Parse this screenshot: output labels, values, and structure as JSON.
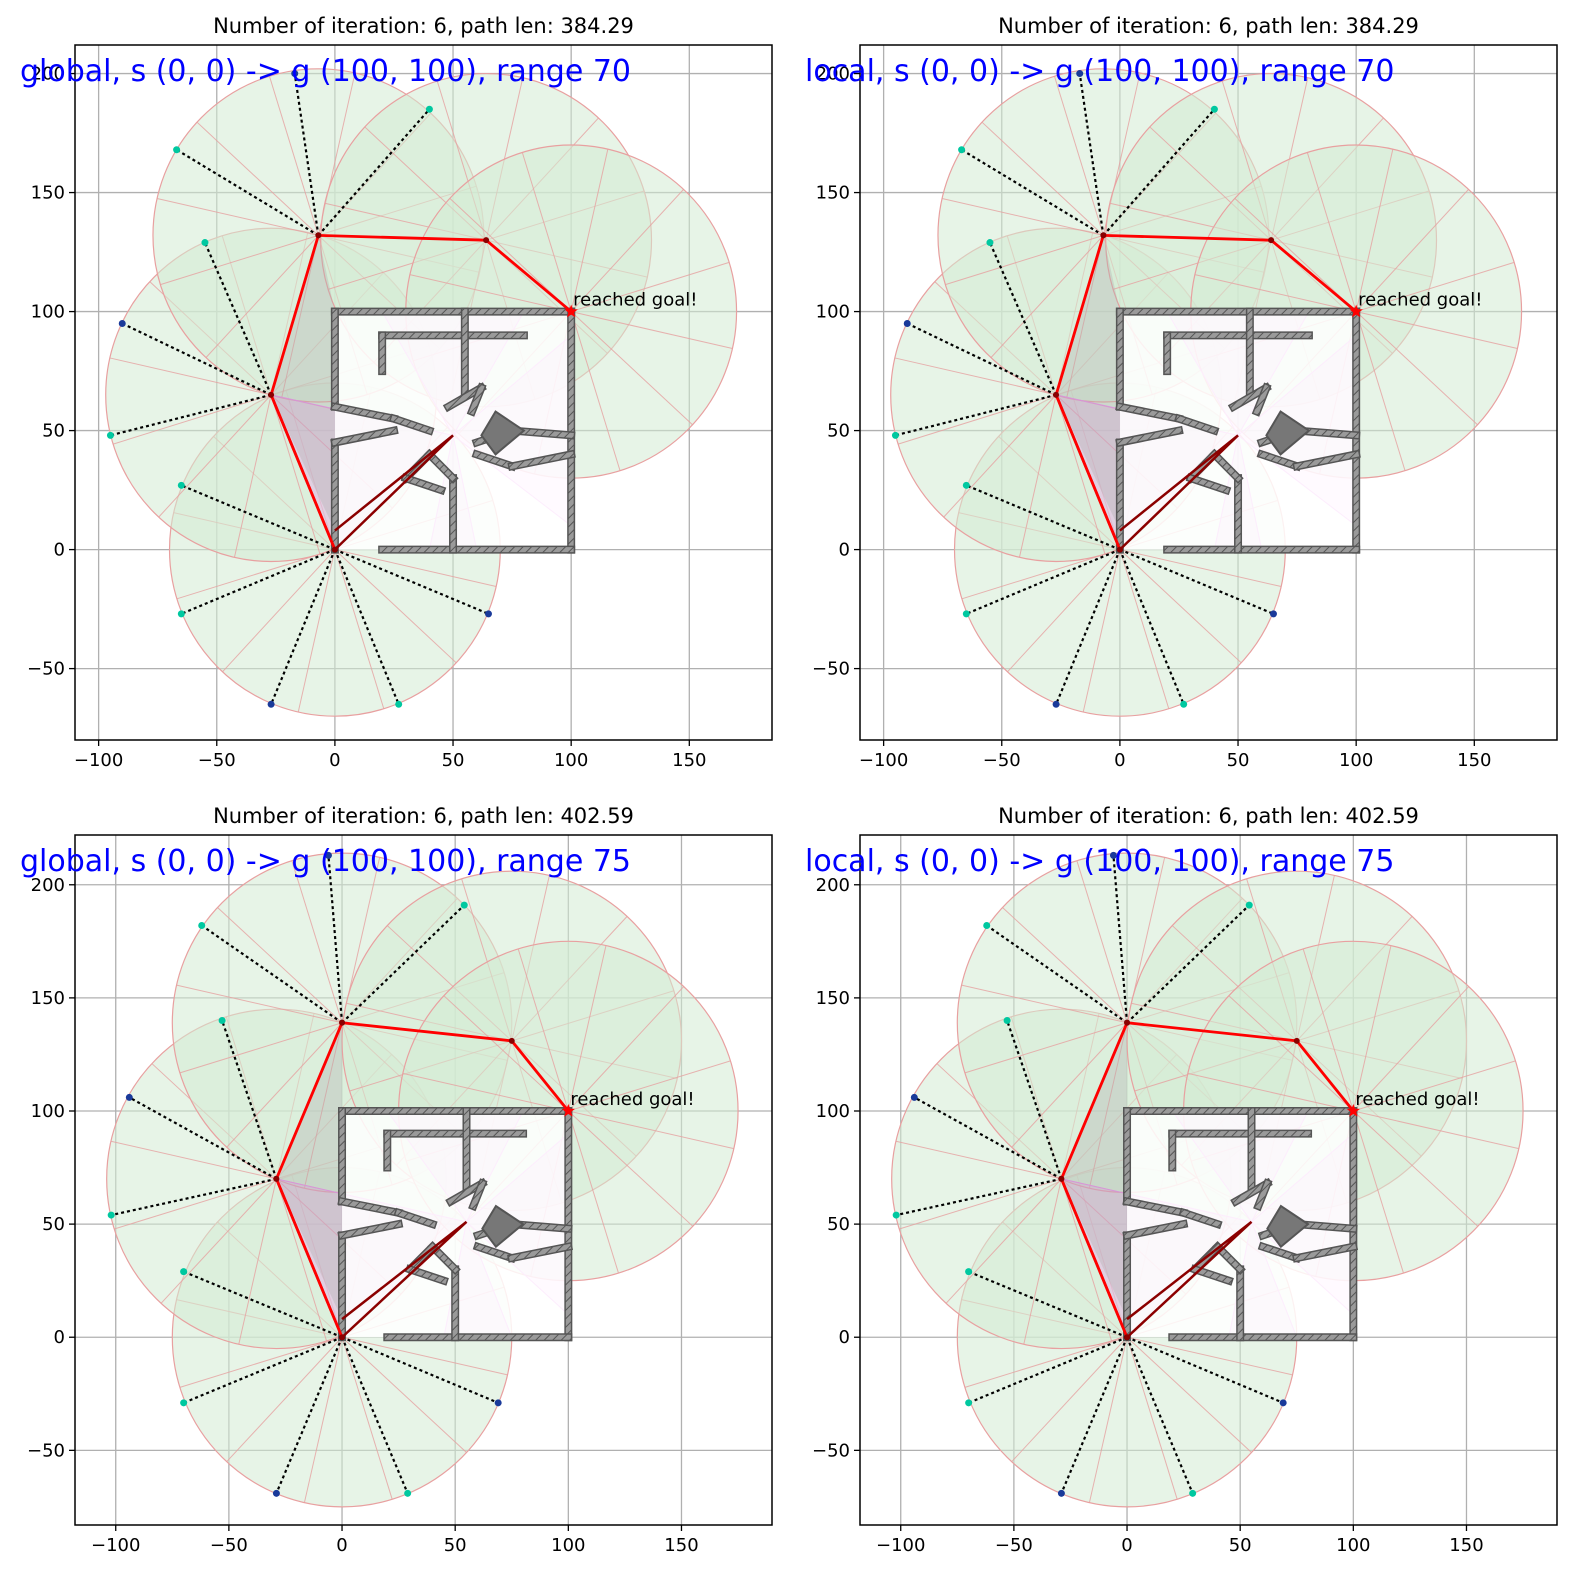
{
  "chart_data": [
    {
      "type": "scatter",
      "title": "Number of iteration: 6, path len: 384.29",
      "overlay_text": "global, s (0, 0) -> g (100, 100), range 70",
      "annotation": "reached goal!",
      "range": 70,
      "xlim": [
        -110,
        185
      ],
      "ylim": [
        -80,
        212
      ],
      "xticks": [
        -100,
        -50,
        0,
        50,
        100,
        150
      ],
      "yticks": [
        -50,
        0,
        50,
        100,
        150,
        200
      ],
      "xtick_labels": [
        "−100",
        "−50",
        "0",
        "50",
        "100",
        "150"
      ],
      "ytick_labels": [
        "−50",
        "0",
        "50",
        "100",
        "150",
        "200"
      ],
      "grid": true,
      "path": [
        [
          0,
          0
        ],
        [
          -27,
          65
        ],
        [
          -7,
          132
        ],
        [
          64,
          130
        ],
        [
          100,
          100
        ]
      ],
      "obstacle_box": [
        [
          0,
          0
        ],
        [
          100,
          100
        ]
      ],
      "rays": [
        {
          "from": [
            0,
            0
          ],
          "to": [
            -27,
            -65
          ]
        },
        {
          "from": [
            0,
            0
          ],
          "to": [
            27,
            -65
          ]
        },
        {
          "from": [
            0,
            0
          ],
          "to": [
            -65,
            -27
          ]
        },
        {
          "from": [
            0,
            0
          ],
          "to": [
            65,
            -27
          ]
        },
        {
          "from": [
            0,
            0
          ],
          "to": [
            -65,
            27
          ]
        },
        {
          "from": [
            -27,
            65
          ],
          "to": [
            -95,
            48
          ]
        },
        {
          "from": [
            -27,
            65
          ],
          "to": [
            -90,
            95
          ]
        },
        {
          "from": [
            -27,
            65
          ],
          "to": [
            -55,
            129
          ]
        },
        {
          "from": [
            -7,
            132
          ],
          "to": [
            -67,
            168
          ]
        },
        {
          "from": [
            -7,
            132
          ],
          "to": [
            -17,
            200
          ]
        },
        {
          "from": [
            -7,
            132
          ],
          "to": [
            40,
            185
          ]
        }
      ],
      "cone_hub": [
        50,
        48
      ],
      "cone_targets": [
        [
          -27,
          65
        ],
        [
          0,
          0
        ],
        [
          100,
          10
        ],
        [
          100,
          90
        ],
        [
          80,
          100
        ],
        [
          20,
          100
        ],
        [
          40,
          0
        ],
        [
          60,
          0
        ]
      ]
    },
    {
      "type": "scatter",
      "title": "Number of iteration: 6, path len: 384.29",
      "overlay_text": "local, s (0, 0) -> g (100, 100), range 70",
      "annotation": "reached goal!",
      "range": 70,
      "xlim": [
        -110,
        185
      ],
      "ylim": [
        -80,
        212
      ],
      "xticks": [
        -100,
        -50,
        0,
        50,
        100,
        150
      ],
      "yticks": [
        -50,
        0,
        50,
        100,
        150,
        200
      ],
      "xtick_labels": [
        "−100",
        "−50",
        "0",
        "50",
        "100",
        "150"
      ],
      "ytick_labels": [
        "−50",
        "0",
        "50",
        "100",
        "150",
        "200"
      ],
      "grid": true,
      "path": [
        [
          0,
          0
        ],
        [
          -27,
          65
        ],
        [
          -7,
          132
        ],
        [
          64,
          130
        ],
        [
          100,
          100
        ]
      ],
      "obstacle_box": [
        [
          0,
          0
        ],
        [
          100,
          100
        ]
      ],
      "rays": [
        {
          "from": [
            0,
            0
          ],
          "to": [
            -27,
            -65
          ]
        },
        {
          "from": [
            0,
            0
          ],
          "to": [
            27,
            -65
          ]
        },
        {
          "from": [
            0,
            0
          ],
          "to": [
            -65,
            -27
          ]
        },
        {
          "from": [
            0,
            0
          ],
          "to": [
            65,
            -27
          ]
        },
        {
          "from": [
            0,
            0
          ],
          "to": [
            -65,
            27
          ]
        },
        {
          "from": [
            -27,
            65
          ],
          "to": [
            -95,
            48
          ]
        },
        {
          "from": [
            -27,
            65
          ],
          "to": [
            -90,
            95
          ]
        },
        {
          "from": [
            -27,
            65
          ],
          "to": [
            -55,
            129
          ]
        },
        {
          "from": [
            -7,
            132
          ],
          "to": [
            -67,
            168
          ]
        },
        {
          "from": [
            -7,
            132
          ],
          "to": [
            -17,
            200
          ]
        },
        {
          "from": [
            -7,
            132
          ],
          "to": [
            40,
            185
          ]
        }
      ],
      "cone_hub": [
        50,
        48
      ],
      "cone_targets": [
        [
          -27,
          65
        ],
        [
          0,
          0
        ],
        [
          100,
          10
        ],
        [
          100,
          90
        ],
        [
          80,
          100
        ],
        [
          20,
          100
        ],
        [
          40,
          0
        ],
        [
          60,
          0
        ]
      ]
    },
    {
      "type": "scatter",
      "title": "Number of iteration: 6, path len: 402.59",
      "overlay_text": "global, s (0, 0) -> g (100, 100), range 75",
      "annotation": "reached goal!",
      "range": 75,
      "xlim": [
        -118,
        190
      ],
      "ylim": [
        -83,
        222
      ],
      "xticks": [
        -100,
        -50,
        0,
        50,
        100,
        150
      ],
      "yticks": [
        -50,
        0,
        50,
        100,
        150,
        200
      ],
      "xtick_labels": [
        "−100",
        "−50",
        "0",
        "50",
        "100",
        "150"
      ],
      "ytick_labels": [
        "−50",
        "0",
        "50",
        "100",
        "150",
        "200"
      ],
      "grid": true,
      "path": [
        [
          0,
          0
        ],
        [
          -29,
          70
        ],
        [
          0,
          139
        ],
        [
          75,
          131
        ],
        [
          100,
          100
        ]
      ],
      "obstacle_box": [
        [
          0,
          0
        ],
        [
          100,
          100
        ]
      ],
      "rays": [
        {
          "from": [
            0,
            0
          ],
          "to": [
            -29,
            -69
          ]
        },
        {
          "from": [
            0,
            0
          ],
          "to": [
            29,
            -69
          ]
        },
        {
          "from": [
            0,
            0
          ],
          "to": [
            -70,
            -29
          ]
        },
        {
          "from": [
            0,
            0
          ],
          "to": [
            69,
            -29
          ]
        },
        {
          "from": [
            0,
            0
          ],
          "to": [
            -70,
            29
          ]
        },
        {
          "from": [
            -29,
            70
          ],
          "to": [
            -102,
            54
          ]
        },
        {
          "from": [
            -29,
            70
          ],
          "to": [
            -94,
            106
          ]
        },
        {
          "from": [
            -29,
            70
          ],
          "to": [
            -53,
            140
          ]
        },
        {
          "from": [
            0,
            139
          ],
          "to": [
            -62,
            182
          ]
        },
        {
          "from": [
            0,
            139
          ],
          "to": [
            -6,
            213
          ]
        },
        {
          "from": [
            0,
            139
          ],
          "to": [
            54,
            191
          ]
        }
      ],
      "cone_hub": [
        55,
        51
      ],
      "cone_targets": [
        [
          -29,
          70
        ],
        [
          0,
          0
        ],
        [
          100,
          10
        ],
        [
          100,
          90
        ],
        [
          80,
          100
        ],
        [
          20,
          100
        ],
        [
          45,
          0
        ],
        [
          75,
          0
        ]
      ]
    },
    {
      "type": "scatter",
      "title": "Number of iteration: 6, path len: 402.59",
      "overlay_text": "local, s (0, 0) -> g (100, 100), range 75",
      "annotation": "reached goal!",
      "range": 75,
      "xlim": [
        -118,
        190
      ],
      "ylim": [
        -83,
        222
      ],
      "xticks": [
        -100,
        -50,
        0,
        50,
        100,
        150
      ],
      "yticks": [
        -50,
        0,
        50,
        100,
        150,
        200
      ],
      "xtick_labels": [
        "−100",
        "−50",
        "0",
        "50",
        "100",
        "150"
      ],
      "ytick_labels": [
        "−50",
        "0",
        "50",
        "100",
        "150",
        "200"
      ],
      "grid": true,
      "path": [
        [
          0,
          0
        ],
        [
          -29,
          70
        ],
        [
          0,
          139
        ],
        [
          75,
          131
        ],
        [
          100,
          100
        ]
      ],
      "obstacle_box": [
        [
          0,
          0
        ],
        [
          100,
          100
        ]
      ],
      "rays": [
        {
          "from": [
            0,
            0
          ],
          "to": [
            -29,
            -69
          ]
        },
        {
          "from": [
            0,
            0
          ],
          "to": [
            29,
            -69
          ]
        },
        {
          "from": [
            0,
            0
          ],
          "to": [
            -70,
            -29
          ]
        },
        {
          "from": [
            0,
            0
          ],
          "to": [
            69,
            -29
          ]
        },
        {
          "from": [
            0,
            0
          ],
          "to": [
            -70,
            29
          ]
        },
        {
          "from": [
            -29,
            70
          ],
          "to": [
            -102,
            54
          ]
        },
        {
          "from": [
            -29,
            70
          ],
          "to": [
            -94,
            106
          ]
        },
        {
          "from": [
            -29,
            70
          ],
          "to": [
            -53,
            140
          ]
        },
        {
          "from": [
            0,
            139
          ],
          "to": [
            -62,
            182
          ]
        },
        {
          "from": [
            0,
            139
          ],
          "to": [
            -6,
            213
          ]
        },
        {
          "from": [
            0,
            139
          ],
          "to": [
            54,
            191
          ]
        }
      ],
      "cone_hub": [
        55,
        51
      ],
      "cone_targets": [
        [
          -29,
          70
        ],
        [
          0,
          0
        ],
        [
          100,
          10
        ],
        [
          100,
          90
        ],
        [
          80,
          100
        ],
        [
          20,
          100
        ],
        [
          45,
          0
        ],
        [
          75,
          0
        ]
      ]
    }
  ],
  "colors": {
    "circle_fill": "#d4ebd4",
    "circle_edge": "#e8a0a0",
    "spoke": "#e6a0a0",
    "path": "#ff0000",
    "ray": "#000000",
    "cone_fill": "#ee88ee",
    "maze_wall": "#888888",
    "overlay": "#0000ff",
    "grid": "#b0b0b0"
  }
}
